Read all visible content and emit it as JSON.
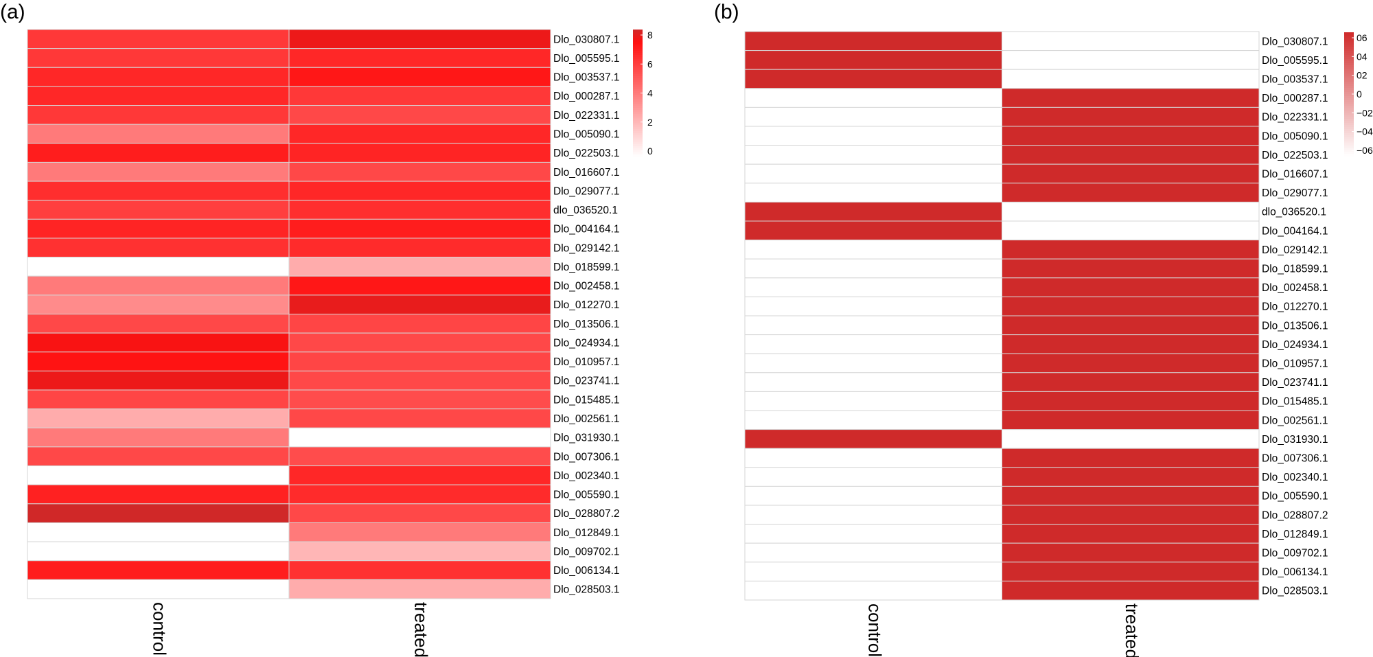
{
  "chart_data": [
    {
      "type": "heatmap",
      "panel_label": "(a)",
      "columns": [
        "control",
        "treated"
      ],
      "rows": [
        "Dlo_030807.1",
        "Dlo_005595.1",
        "Dlo_003537.1",
        "Dlo_000287.1",
        "Dlo_022331.1",
        "Dlo_005090.1",
        "Dlo_022503.1",
        "Dlo_016607.1",
        "Dlo_029077.1",
        "dlo_036520.1",
        "Dlo_004164.1",
        "Dlo_029142.1",
        "Dlo_018599.1",
        "Dlo_002458.1",
        "Dlo_012270.1",
        "Dlo_013506.1",
        "Dlo_024934.1",
        "Dlo_010957.1",
        "Dlo_023741.1",
        "Dlo_015485.1",
        "Dlo_002561.1",
        "Dlo_031930.1",
        "Dlo_007306.1",
        "Dlo_002340.1",
        "Dlo_005590.1",
        "Dlo_028807.2",
        "Dlo_012849.1",
        "Dlo_009702.1",
        "Dlo_006134.1",
        "Dlo_028503.1"
      ],
      "values": [
        [
          6.0,
          7.5
        ],
        [
          6.0,
          6.5
        ],
        [
          6.5,
          7.0
        ],
        [
          6.5,
          6.0
        ],
        [
          6.0,
          5.5
        ],
        [
          4.0,
          6.5
        ],
        [
          6.8,
          6.6
        ],
        [
          4.0,
          5.5
        ],
        [
          6.3,
          6.5
        ],
        [
          5.8,
          6.3
        ],
        [
          6.6,
          6.8
        ],
        [
          6.2,
          6.4
        ],
        [
          0.0,
          2.5
        ],
        [
          4.0,
          7.0
        ],
        [
          3.5,
          7.6
        ],
        [
          5.5,
          5.6
        ],
        [
          7.3,
          5.5
        ],
        [
          7.1,
          5.6
        ],
        [
          7.5,
          5.5
        ],
        [
          5.6,
          5.4
        ],
        [
          2.5,
          5.5
        ],
        [
          4.0,
          0.0
        ],
        [
          5.5,
          5.4
        ],
        [
          0.0,
          6.5
        ],
        [
          6.7,
          6.4
        ],
        [
          8.0,
          5.5
        ],
        [
          0.0,
          4.0
        ],
        [
          0.0,
          2.2
        ],
        [
          6.8,
          6.2
        ],
        [
          0.0,
          2.5
        ]
      ],
      "color_scale": {
        "low": "#ffffff",
        "mid": "#ff1010",
        "high": "#d02828",
        "range": [
          0,
          8
        ]
      },
      "colorbar_ticks": [
        "8",
        "6",
        "4",
        "2",
        "0"
      ]
    },
    {
      "type": "heatmap",
      "panel_label": "(b)",
      "columns": [
        "control",
        "treated"
      ],
      "rows": [
        "Dlo_030807.1",
        "Dlo_005595.1",
        "Dlo_003537.1",
        "Dlo_000287.1",
        "Dlo_022331.1",
        "Dlo_005090.1",
        "Dlo_022503.1",
        "Dlo_016607.1",
        "Dlo_029077.1",
        "dlo_036520.1",
        "Dlo_004164.1",
        "Dlo_029142.1",
        "Dlo_018599.1",
        "Dlo_002458.1",
        "Dlo_012270.1",
        "Dlo_013506.1",
        "Dlo_024934.1",
        "Dlo_010957.1",
        "Dlo_023741.1",
        "Dlo_015485.1",
        "Dlo_002561.1",
        "Dlo_031930.1",
        "Dlo_007306.1",
        "Dlo_002340.1",
        "Dlo_005590.1",
        "Dlo_028807.2",
        "Dlo_012849.1",
        "Dlo_009702.1",
        "Dlo_006134.1",
        "Dlo_028503.1"
      ],
      "values": [
        [
          0.707,
          -0.707
        ],
        [
          0.707,
          -0.707
        ],
        [
          0.707,
          -0.707
        ],
        [
          -0.707,
          0.707
        ],
        [
          -0.707,
          0.707
        ],
        [
          -0.707,
          0.707
        ],
        [
          -0.707,
          0.707
        ],
        [
          -0.707,
          0.707
        ],
        [
          -0.707,
          0.707
        ],
        [
          0.707,
          -0.707
        ],
        [
          0.707,
          -0.707
        ],
        [
          -0.707,
          0.707
        ],
        [
          -0.707,
          0.707
        ],
        [
          -0.707,
          0.707
        ],
        [
          -0.707,
          0.707
        ],
        [
          -0.707,
          0.707
        ],
        [
          -0.707,
          0.707
        ],
        [
          -0.707,
          0.707
        ],
        [
          -0.707,
          0.707
        ],
        [
          -0.707,
          0.707
        ],
        [
          -0.707,
          0.707
        ],
        [
          0.707,
          -0.707
        ],
        [
          -0.707,
          0.707
        ],
        [
          -0.707,
          0.707
        ],
        [
          -0.707,
          0.707
        ],
        [
          -0.707,
          0.707
        ],
        [
          -0.707,
          0.707
        ],
        [
          -0.707,
          0.707
        ],
        [
          -0.707,
          0.707
        ],
        [
          -0.707,
          0.707
        ]
      ],
      "color_scale": {
        "low": "#ffffff",
        "high": "#cf2a2a",
        "range": [
          -0.707,
          0.707
        ]
      },
      "colorbar_ticks": [
        "06",
        "04",
        "02",
        "0",
        "−02",
        "−04",
        "−06"
      ]
    }
  ]
}
